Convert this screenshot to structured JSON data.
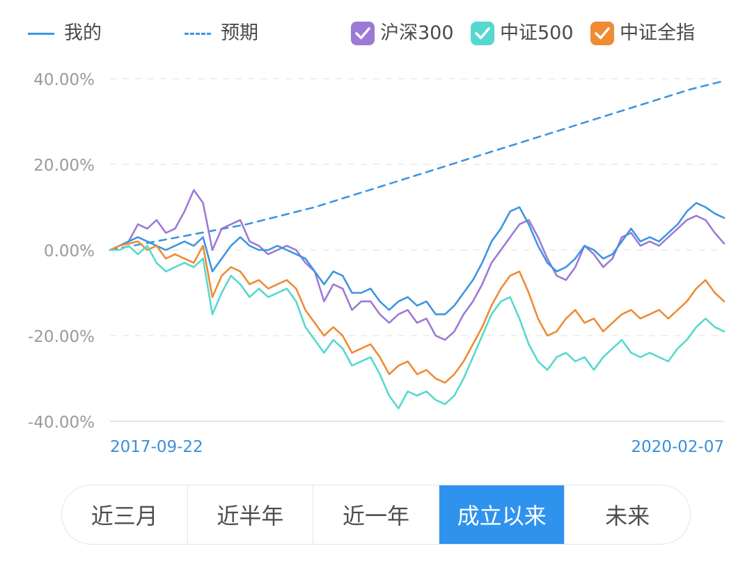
{
  "legend": {
    "mine": "我的",
    "expected": "预期",
    "hs300": "沪深300",
    "zz500": "中证500",
    "zzqz": "中证全指"
  },
  "colors": {
    "mine": "#3d95e0",
    "expected": "#3d95e0",
    "hs300": "#9b7ad6",
    "zz500": "#56d8d0",
    "zzqz": "#ee8b33"
  },
  "tabs": [
    {
      "label": "近三月",
      "active": false
    },
    {
      "label": "近半年",
      "active": false
    },
    {
      "label": "近一年",
      "active": false
    },
    {
      "label": "成立以来",
      "active": true
    },
    {
      "label": "未来",
      "active": false
    }
  ],
  "chart_data": {
    "type": "line",
    "ylim": [
      -40,
      40
    ],
    "y_ticks": [
      "40.00%",
      "20.00%",
      "0.00%",
      "-20.00%",
      "-40.00%"
    ],
    "x_start_label": "2017-09-22",
    "x_end_label": "2020-02-07",
    "grid": true,
    "series": [
      {
        "key": "expected",
        "name": "预期",
        "dashed": true,
        "values": [
          0,
          1.5,
          3,
          4.5,
          6,
          8,
          10,
          12.5,
          15,
          17.5,
          20,
          22.5,
          25,
          27.5,
          30,
          32.5,
          35,
          37.5,
          39.5
        ]
      },
      {
        "key": "hs300",
        "name": "沪深300",
        "values": [
          0,
          1,
          2,
          6,
          5,
          7,
          4,
          5,
          9,
          14,
          11,
          0,
          5,
          6,
          7,
          2,
          1,
          -1,
          0,
          1,
          0,
          -3,
          -5,
          -12,
          -8,
          -9,
          -14,
          -12,
          -12,
          -15,
          -17,
          -15,
          -14,
          -17,
          -16,
          -20,
          -21,
          -19,
          -15,
          -12,
          -8,
          -3,
          0,
          3,
          6,
          7,
          3,
          -2,
          -6,
          -7,
          -4,
          1,
          -1,
          -4,
          -2,
          3,
          4,
          1,
          2,
          1,
          3,
          5,
          7,
          8,
          7,
          4,
          1.5
        ]
      },
      {
        "key": "mine",
        "name": "我的",
        "values": [
          0,
          1,
          2,
          3,
          2,
          1,
          0,
          1,
          2,
          1,
          3,
          -5,
          -2,
          1,
          3,
          1,
          0,
          0,
          1,
          0,
          -1,
          -2,
          -5,
          -8,
          -5,
          -6,
          -10,
          -10,
          -9,
          -12,
          -14,
          -12,
          -11,
          -13,
          -12,
          -15,
          -15,
          -13,
          -10,
          -7,
          -3,
          2,
          5,
          9,
          10,
          6,
          1,
          -3,
          -5,
          -4,
          -2,
          1,
          0,
          -2,
          -1,
          2,
          5,
          2,
          3,
          2,
          4,
          6,
          9,
          11,
          10,
          8.5,
          7.5
        ]
      },
      {
        "key": "zzqz",
        "name": "中证全指",
        "values": [
          0,
          1,
          1.5,
          2,
          0,
          1,
          -2,
          -1,
          -2,
          -3,
          1,
          -11,
          -6,
          -4,
          -5,
          -8,
          -7,
          -9,
          -8,
          -7,
          -9,
          -14,
          -17,
          -20,
          -18,
          -20,
          -24,
          -23,
          -22,
          -25,
          -29,
          -27,
          -26,
          -29,
          -28,
          -30,
          -31,
          -29,
          -26,
          -22,
          -18,
          -13,
          -9,
          -6,
          -5,
          -10,
          -16,
          -20,
          -19,
          -16,
          -14,
          -17,
          -16,
          -19,
          -17,
          -15,
          -14,
          -16,
          -15,
          -14,
          -16,
          -14,
          -12,
          -9,
          -7,
          -10,
          -12
        ]
      },
      {
        "key": "zz500",
        "name": "中证500",
        "values": [
          0,
          0,
          1,
          -1,
          1,
          -3,
          -5,
          -4,
          -3,
          -4,
          -2,
          -15,
          -10,
          -6,
          -8,
          -11,
          -9,
          -11,
          -10,
          -9,
          -12,
          -18,
          -21,
          -24,
          -21,
          -23,
          -27,
          -26,
          -25,
          -29,
          -34,
          -37,
          -33,
          -34,
          -33,
          -35,
          -36,
          -34,
          -30,
          -25,
          -20,
          -15,
          -12,
          -11,
          -16,
          -22,
          -26,
          -28,
          -25,
          -24,
          -26,
          -25,
          -28,
          -25,
          -23,
          -21,
          -24,
          -25,
          -24,
          -25,
          -26,
          -23,
          -21,
          -18,
          -16,
          -18,
          -19
        ]
      }
    ]
  }
}
